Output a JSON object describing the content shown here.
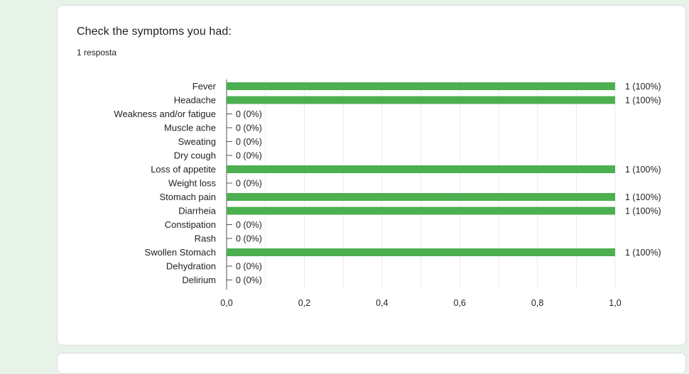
{
  "question": {
    "title": "Check the symptoms you had:",
    "responses": "1 resposta"
  },
  "colors": {
    "bar": "#4caf50",
    "text": "#222222",
    "grid": "#ebebeb",
    "axis": "#555555"
  },
  "chart_data": {
    "type": "bar",
    "orientation": "horizontal",
    "categories": [
      "Fever",
      "Headache",
      "Weakness and/or fatigue",
      "Muscle ache",
      "Sweating",
      "Dry cough",
      "Loss of appetite",
      "Weight loss",
      "Stomach pain",
      "Diarrheia",
      "Constipation",
      "Rash",
      "Swollen Stomach",
      "Dehydration",
      "Delirium"
    ],
    "values": [
      1,
      1,
      0,
      0,
      0,
      0,
      1,
      0,
      1,
      1,
      0,
      0,
      1,
      0,
      0
    ],
    "data_labels": [
      "1 (100%)",
      "1 (100%)",
      "0 (0%)",
      "0 (0%)",
      "0 (0%)",
      "0 (0%)",
      "1 (100%)",
      "0 (0%)",
      "1 (100%)",
      "1 (100%)",
      "0 (0%)",
      "0 (0%)",
      "1 (100%)",
      "0 (0%)",
      "0 (0%)"
    ],
    "xlim": [
      0,
      1
    ],
    "xticks": [
      0,
      0.2,
      0.4,
      0.6,
      0.8,
      1.0
    ],
    "xtick_labels": [
      "0,0",
      "0,2",
      "0,4",
      "0,6",
      "0,8",
      "1,0"
    ],
    "grid": true
  }
}
